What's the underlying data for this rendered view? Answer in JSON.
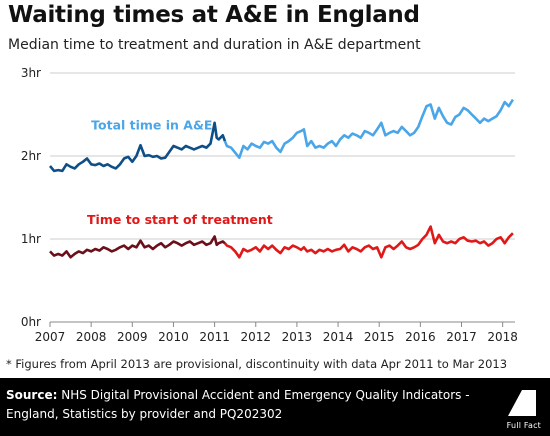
{
  "header": {
    "title": "Waiting times at A&E in England",
    "subtitle": "Median time to treatment and duration in A&E department"
  },
  "footnote": "* Figures from April 2013 are provisional, discontinuity with data Apr 2011 to Mar 2013",
  "footer": {
    "source_label": "Source:",
    "source_text": "NHS Digital Provisional Accident and Emergency Quality Indicators - England, Statistics by provider and PQ202302",
    "logo_text": "Full Fact"
  },
  "colors": {
    "total_early": "#0d4f86",
    "total_late": "#4aa6e8",
    "treat_early": "#6b0f1a",
    "treat_late": "#e01818",
    "grid": "#cccccc",
    "footer_bg": "#000000"
  },
  "chart_data": {
    "type": "line",
    "title": "Waiting times at A&E in England",
    "subtitle": "Median time to treatment and duration in A&E department",
    "x_ticks": [
      "2007",
      "2008",
      "2009",
      "2010",
      "2011",
      "2012",
      "2013",
      "2014",
      "2015",
      "2016",
      "2017",
      "2018"
    ],
    "y_ticks": [
      "0hr",
      "1hr",
      "2hr",
      "3hr"
    ],
    "xlim": [
      2007.0,
      2018.3
    ],
    "ylim": [
      0,
      3
    ],
    "y_unit": "hours",
    "grid": true,
    "annotations": [
      {
        "text": "Total time in A&E",
        "series": "total",
        "anchor_x": 2008.0,
        "anchor_y": 2.32
      },
      {
        "text": "Time to start of treatment",
        "series": "treatment",
        "anchor_x": 2007.9,
        "anchor_y": 1.18
      }
    ],
    "discontinuity": {
      "from": 2011.25,
      "to": 2013.17
    },
    "series": [
      {
        "key": "total",
        "points": [
          [
            2007.0,
            1.88
          ],
          [
            2007.1,
            1.82
          ],
          [
            2007.2,
            1.83
          ],
          [
            2007.3,
            1.82
          ],
          [
            2007.4,
            1.9
          ],
          [
            2007.5,
            1.87
          ],
          [
            2007.6,
            1.85
          ],
          [
            2007.7,
            1.9
          ],
          [
            2007.8,
            1.93
          ],
          [
            2007.9,
            1.97
          ],
          [
            2008.0,
            1.9
          ],
          [
            2008.1,
            1.89
          ],
          [
            2008.2,
            1.91
          ],
          [
            2008.3,
            1.88
          ],
          [
            2008.4,
            1.9
          ],
          [
            2008.5,
            1.87
          ],
          [
            2008.6,
            1.85
          ],
          [
            2008.7,
            1.9
          ],
          [
            2008.8,
            1.97
          ],
          [
            2008.9,
            1.99
          ],
          [
            2009.0,
            1.93
          ],
          [
            2009.1,
            2.0
          ],
          [
            2009.2,
            2.13
          ],
          [
            2009.3,
            2.0
          ],
          [
            2009.4,
            2.01
          ],
          [
            2009.5,
            1.99
          ],
          [
            2009.6,
            2.0
          ],
          [
            2009.7,
            1.97
          ],
          [
            2009.8,
            1.98
          ],
          [
            2009.9,
            2.05
          ],
          [
            2010.0,
            2.12
          ],
          [
            2010.1,
            2.1
          ],
          [
            2010.2,
            2.08
          ],
          [
            2010.3,
            2.12
          ],
          [
            2010.4,
            2.1
          ],
          [
            2010.5,
            2.08
          ],
          [
            2010.6,
            2.1
          ],
          [
            2010.7,
            2.12
          ],
          [
            2010.8,
            2.1
          ],
          [
            2010.9,
            2.15
          ],
          [
            2011.0,
            2.4
          ],
          [
            2011.05,
            2.22
          ],
          [
            2011.1,
            2.2
          ],
          [
            2011.2,
            2.25
          ],
          [
            2011.25,
            2.18
          ],
          [
            2011.3,
            2.12
          ],
          [
            2011.4,
            2.1
          ],
          [
            2011.5,
            2.04
          ],
          [
            2011.6,
            1.98
          ],
          [
            2011.7,
            2.12
          ],
          [
            2011.8,
            2.08
          ],
          [
            2011.9,
            2.15
          ],
          [
            2012.0,
            2.12
          ],
          [
            2012.1,
            2.1
          ],
          [
            2012.2,
            2.17
          ],
          [
            2012.3,
            2.15
          ],
          [
            2012.4,
            2.18
          ],
          [
            2012.5,
            2.1
          ],
          [
            2012.6,
            2.05
          ],
          [
            2012.7,
            2.15
          ],
          [
            2012.8,
            2.18
          ],
          [
            2012.9,
            2.22
          ],
          [
            2013.0,
            2.28
          ],
          [
            2013.1,
            2.3
          ],
          [
            2013.17,
            2.32
          ],
          [
            2013.25,
            2.12
          ],
          [
            2013.35,
            2.18
          ],
          [
            2013.45,
            2.1
          ],
          [
            2013.55,
            2.12
          ],
          [
            2013.65,
            2.1
          ],
          [
            2013.75,
            2.15
          ],
          [
            2013.85,
            2.18
          ],
          [
            2013.95,
            2.12
          ],
          [
            2014.05,
            2.2
          ],
          [
            2014.15,
            2.25
          ],
          [
            2014.25,
            2.22
          ],
          [
            2014.35,
            2.27
          ],
          [
            2014.45,
            2.25
          ],
          [
            2014.55,
            2.22
          ],
          [
            2014.65,
            2.3
          ],
          [
            2014.75,
            2.28
          ],
          [
            2014.85,
            2.25
          ],
          [
            2014.95,
            2.32
          ],
          [
            2015.05,
            2.4
          ],
          [
            2015.15,
            2.25
          ],
          [
            2015.25,
            2.28
          ],
          [
            2015.35,
            2.3
          ],
          [
            2015.45,
            2.28
          ],
          [
            2015.55,
            2.35
          ],
          [
            2015.65,
            2.3
          ],
          [
            2015.75,
            2.25
          ],
          [
            2015.85,
            2.28
          ],
          [
            2015.95,
            2.35
          ],
          [
            2016.05,
            2.48
          ],
          [
            2016.15,
            2.6
          ],
          [
            2016.25,
            2.62
          ],
          [
            2016.35,
            2.45
          ],
          [
            2016.45,
            2.58
          ],
          [
            2016.55,
            2.48
          ],
          [
            2016.65,
            2.4
          ],
          [
            2016.75,
            2.38
          ],
          [
            2016.85,
            2.47
          ],
          [
            2016.95,
            2.5
          ],
          [
            2017.05,
            2.58
          ],
          [
            2017.15,
            2.55
          ],
          [
            2017.25,
            2.5
          ],
          [
            2017.35,
            2.45
          ],
          [
            2017.45,
            2.4
          ],
          [
            2017.55,
            2.45
          ],
          [
            2017.65,
            2.42
          ],
          [
            2017.75,
            2.45
          ],
          [
            2017.85,
            2.48
          ],
          [
            2017.95,
            2.55
          ],
          [
            2018.05,
            2.65
          ],
          [
            2018.15,
            2.6
          ],
          [
            2018.25,
            2.68
          ]
        ]
      },
      {
        "key": "treatment",
        "points": [
          [
            2007.0,
            0.85
          ],
          [
            2007.1,
            0.8
          ],
          [
            2007.2,
            0.82
          ],
          [
            2007.3,
            0.8
          ],
          [
            2007.4,
            0.85
          ],
          [
            2007.5,
            0.78
          ],
          [
            2007.6,
            0.82
          ],
          [
            2007.7,
            0.85
          ],
          [
            2007.8,
            0.83
          ],
          [
            2007.9,
            0.87
          ],
          [
            2008.0,
            0.85
          ],
          [
            2008.1,
            0.88
          ],
          [
            2008.2,
            0.86
          ],
          [
            2008.3,
            0.9
          ],
          [
            2008.4,
            0.88
          ],
          [
            2008.5,
            0.85
          ],
          [
            2008.6,
            0.87
          ],
          [
            2008.7,
            0.9
          ],
          [
            2008.8,
            0.92
          ],
          [
            2008.9,
            0.88
          ],
          [
            2009.0,
            0.92
          ],
          [
            2009.1,
            0.9
          ],
          [
            2009.2,
            0.98
          ],
          [
            2009.3,
            0.9
          ],
          [
            2009.4,
            0.92
          ],
          [
            2009.5,
            0.88
          ],
          [
            2009.6,
            0.92
          ],
          [
            2009.7,
            0.95
          ],
          [
            2009.8,
            0.9
          ],
          [
            2009.9,
            0.93
          ],
          [
            2010.0,
            0.97
          ],
          [
            2010.1,
            0.95
          ],
          [
            2010.2,
            0.92
          ],
          [
            2010.3,
            0.95
          ],
          [
            2010.4,
            0.97
          ],
          [
            2010.5,
            0.93
          ],
          [
            2010.6,
            0.95
          ],
          [
            2010.7,
            0.97
          ],
          [
            2010.8,
            0.93
          ],
          [
            2010.9,
            0.95
          ],
          [
            2011.0,
            1.03
          ],
          [
            2011.05,
            0.93
          ],
          [
            2011.1,
            0.95
          ],
          [
            2011.2,
            0.97
          ],
          [
            2011.25,
            0.95
          ],
          [
            2011.3,
            0.92
          ],
          [
            2011.4,
            0.9
          ],
          [
            2011.5,
            0.85
          ],
          [
            2011.6,
            0.78
          ],
          [
            2011.7,
            0.88
          ],
          [
            2011.8,
            0.85
          ],
          [
            2011.9,
            0.87
          ],
          [
            2012.0,
            0.9
          ],
          [
            2012.1,
            0.85
          ],
          [
            2012.2,
            0.92
          ],
          [
            2012.3,
            0.88
          ],
          [
            2012.4,
            0.92
          ],
          [
            2012.5,
            0.87
          ],
          [
            2012.6,
            0.83
          ],
          [
            2012.7,
            0.9
          ],
          [
            2012.8,
            0.88
          ],
          [
            2012.9,
            0.92
          ],
          [
            2013.0,
            0.9
          ],
          [
            2013.1,
            0.87
          ],
          [
            2013.17,
            0.9
          ],
          [
            2013.25,
            0.85
          ],
          [
            2013.35,
            0.87
          ],
          [
            2013.45,
            0.83
          ],
          [
            2013.55,
            0.87
          ],
          [
            2013.65,
            0.85
          ],
          [
            2013.75,
            0.88
          ],
          [
            2013.85,
            0.85
          ],
          [
            2013.95,
            0.87
          ],
          [
            2014.05,
            0.88
          ],
          [
            2014.15,
            0.93
          ],
          [
            2014.25,
            0.85
          ],
          [
            2014.35,
            0.9
          ],
          [
            2014.45,
            0.88
          ],
          [
            2014.55,
            0.85
          ],
          [
            2014.65,
            0.9
          ],
          [
            2014.75,
            0.92
          ],
          [
            2014.85,
            0.88
          ],
          [
            2014.95,
            0.9
          ],
          [
            2015.05,
            0.78
          ],
          [
            2015.15,
            0.9
          ],
          [
            2015.25,
            0.92
          ],
          [
            2015.35,
            0.88
          ],
          [
            2015.45,
            0.92
          ],
          [
            2015.55,
            0.97
          ],
          [
            2015.65,
            0.9
          ],
          [
            2015.75,
            0.88
          ],
          [
            2015.85,
            0.9
          ],
          [
            2015.95,
            0.93
          ],
          [
            2016.05,
            1.0
          ],
          [
            2016.15,
            1.05
          ],
          [
            2016.25,
            1.15
          ],
          [
            2016.35,
            0.95
          ],
          [
            2016.45,
            1.05
          ],
          [
            2016.55,
            0.97
          ],
          [
            2016.65,
            0.95
          ],
          [
            2016.75,
            0.97
          ],
          [
            2016.85,
            0.95
          ],
          [
            2016.95,
            1.0
          ],
          [
            2017.05,
            1.02
          ],
          [
            2017.15,
            0.98
          ],
          [
            2017.25,
            0.97
          ],
          [
            2017.35,
            0.98
          ],
          [
            2017.45,
            0.95
          ],
          [
            2017.55,
            0.97
          ],
          [
            2017.65,
            0.92
          ],
          [
            2017.75,
            0.95
          ],
          [
            2017.85,
            1.0
          ],
          [
            2017.95,
            1.02
          ],
          [
            2018.05,
            0.95
          ],
          [
            2018.15,
            1.02
          ],
          [
            2018.25,
            1.07
          ]
        ]
      }
    ]
  }
}
